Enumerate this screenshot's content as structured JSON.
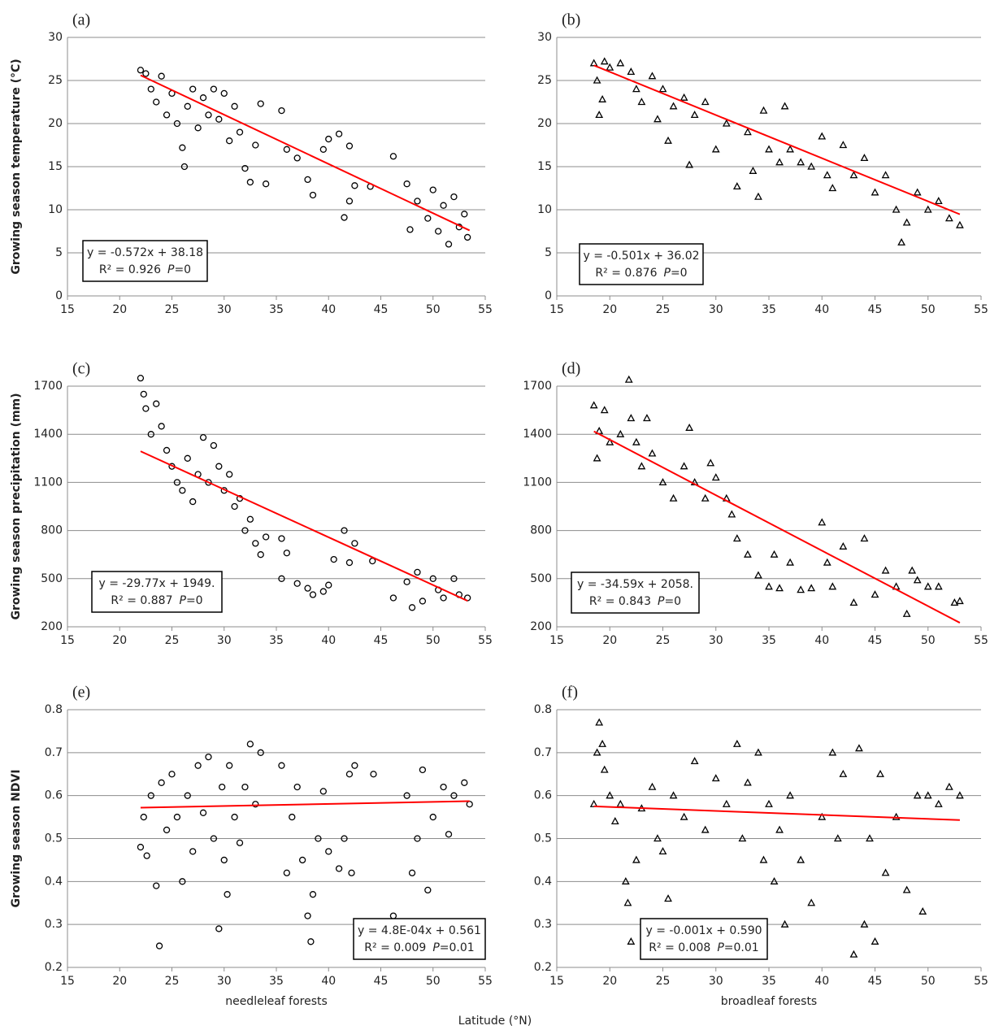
{
  "x_axis_title": "Latitude (°N)",
  "chart_data": [
    {
      "type": "scatter",
      "panel_label": "(a)",
      "y_label": "Growing season temperature (°C)",
      "marker": "circle",
      "xlim": [
        15,
        55
      ],
      "xticks": [
        15,
        20,
        25,
        30,
        35,
        40,
        45,
        50,
        55
      ],
      "ylim": [
        0,
        30
      ],
      "yticks": [
        0,
        5,
        10,
        15,
        20,
        25,
        30
      ],
      "grid": true,
      "series": [
        {
          "color": "#000000",
          "x": [
            22,
            22.5,
            23,
            23.5,
            24,
            24.5,
            25,
            25.5,
            26,
            26.2,
            26.5,
            27,
            27.5,
            28,
            28.5,
            29,
            29.5,
            30,
            30.5,
            31,
            31.5,
            32,
            32.5,
            33,
            33.5,
            34,
            35.5,
            36,
            37,
            38,
            38.5,
            39.5,
            40,
            41,
            41.5,
            42,
            42,
            42.5,
            44,
            46.2,
            47.5,
            47.8,
            48.5,
            49.5,
            50,
            50.5,
            51,
            51.5,
            52,
            52.5,
            53,
            53.3
          ],
          "values": [
            26.2,
            25.8,
            24,
            22.5,
            25.5,
            21,
            23.5,
            20,
            17.2,
            15,
            22,
            24,
            19.5,
            23,
            21,
            24,
            20.5,
            23.5,
            18,
            22,
            19,
            14.8,
            13.2,
            17.5,
            22.3,
            13,
            21.5,
            17,
            16,
            13.5,
            11.7,
            17,
            18.2,
            18.8,
            9.1,
            17.4,
            11,
            12.8,
            12.7,
            16.2,
            13,
            7.7,
            11,
            9,
            12.3,
            7.5,
            10.5,
            6,
            11.5,
            8,
            9.5,
            6.8
          ]
        }
      ],
      "trend": {
        "color": "#ff0000",
        "x": [
          22,
          53.5
        ],
        "values": [
          25.6,
          7.6
        ]
      },
      "annotation": {
        "equation": "y = -0.572x + 38.18",
        "r2": "R² = 0.926",
        "p_label": "P",
        "p_value": "=0"
      }
    },
    {
      "type": "scatter",
      "panel_label": "(b)",
      "marker": "triangle",
      "xlim": [
        15,
        55
      ],
      "xticks": [
        15,
        20,
        25,
        30,
        35,
        40,
        45,
        50,
        55
      ],
      "ylim": [
        0,
        30
      ],
      "yticks": [
        0,
        5,
        10,
        15,
        20,
        25,
        30
      ],
      "grid": true,
      "series": [
        {
          "color": "#000000",
          "x": [
            18.5,
            18.8,
            19,
            19.3,
            19.5,
            20,
            21,
            22,
            22.5,
            23,
            24,
            24.5,
            25,
            25.5,
            26,
            27,
            27.5,
            28,
            29,
            30,
            31,
            32,
            33,
            33.5,
            34,
            34.5,
            35,
            36,
            36.5,
            37,
            38,
            39,
            40,
            40.5,
            41,
            42,
            43,
            44,
            45,
            46,
            47,
            47.5,
            48,
            49,
            50,
            51,
            52,
            53
          ],
          "values": [
            27,
            25,
            21,
            22.8,
            27.2,
            26.5,
            27,
            26,
            24,
            22.5,
            25.5,
            20.5,
            24,
            18,
            22,
            23,
            15.2,
            21,
            22.5,
            17,
            20,
            12.7,
            19,
            14.5,
            11.5,
            21.5,
            17,
            15.5,
            22,
            17,
            15.5,
            15,
            18.5,
            14,
            12.5,
            17.5,
            14,
            16,
            12,
            14,
            10,
            6.2,
            8.5,
            12,
            10,
            11,
            9,
            8.2
          ]
        }
      ],
      "trend": {
        "color": "#ff0000",
        "x": [
          18.5,
          53
        ],
        "values": [
          26.75,
          9.47
        ]
      },
      "annotation": {
        "equation": "y = -0.501x + 36.02",
        "r2": "R² = 0.876",
        "p_label": "P",
        "p_value": "=0"
      }
    },
    {
      "type": "scatter",
      "panel_label": "(c)",
      "y_label": "Growing season precipitation (mm)",
      "marker": "circle",
      "xlim": [
        15,
        55
      ],
      "xticks": [
        15,
        20,
        25,
        30,
        35,
        40,
        45,
        50,
        55
      ],
      "ylim": [
        200,
        1700
      ],
      "yticks": [
        200,
        500,
        800,
        1100,
        1400,
        1700
      ],
      "grid": true,
      "series": [
        {
          "color": "#000000",
          "x": [
            22,
            22.3,
            22.5,
            23,
            23.5,
            24,
            24.5,
            25,
            25.5,
            26,
            26.5,
            27,
            27.5,
            28,
            28.5,
            29,
            29.5,
            30,
            30.5,
            31,
            31.5,
            32,
            32.5,
            33,
            33.5,
            34,
            35.5,
            35.5,
            36,
            37,
            38,
            38.5,
            39.5,
            40,
            40.5,
            41.5,
            42,
            42.5,
            44.2,
            46.2,
            47.5,
            48,
            48.5,
            49,
            50,
            50.5,
            51,
            52,
            52.5,
            53.3
          ],
          "values": [
            1750,
            1650,
            1560,
            1400,
            1590,
            1450,
            1300,
            1200,
            1100,
            1050,
            1250,
            980,
            1150,
            1380,
            1100,
            1330,
            1200,
            1050,
            1150,
            950,
            1000,
            800,
            870,
            720,
            650,
            760,
            750,
            500,
            660,
            470,
            440,
            400,
            420,
            460,
            620,
            800,
            600,
            720,
            610,
            380,
            480,
            320,
            540,
            360,
            500,
            430,
            380,
            500,
            400,
            380
          ]
        }
      ],
      "trend": {
        "color": "#ff0000",
        "x": [
          22,
          53.3
        ],
        "values": [
          1294,
          362
        ]
      },
      "annotation": {
        "equation": "y = -29.77x + 1949.",
        "r2": "R² = 0.887",
        "p_label": "P",
        "p_value": "=0"
      }
    },
    {
      "type": "scatter",
      "panel_label": "(d)",
      "marker": "triangle",
      "xlim": [
        15,
        55
      ],
      "xticks": [
        15,
        20,
        25,
        30,
        35,
        40,
        45,
        50,
        55
      ],
      "ylim": [
        200,
        1700
      ],
      "yticks": [
        200,
        500,
        800,
        1100,
        1400,
        1700
      ],
      "grid": true,
      "series": [
        {
          "color": "#000000",
          "x": [
            18.5,
            18.8,
            19,
            19.5,
            20,
            21,
            21.8,
            22,
            22.5,
            23,
            23.5,
            24,
            25,
            26,
            27,
            27.5,
            28,
            29,
            29.5,
            30,
            31,
            31.5,
            32,
            33,
            34,
            35,
            35.5,
            36,
            37,
            38,
            39,
            40,
            40.5,
            41,
            42,
            43,
            44,
            45,
            46,
            47,
            48,
            48.5,
            49,
            50,
            51,
            52.5,
            53
          ],
          "values": [
            1580,
            1250,
            1420,
            1550,
            1350,
            1400,
            1740,
            1500,
            1350,
            1200,
            1500,
            1280,
            1100,
            1000,
            1200,
            1440,
            1100,
            1000,
            1220,
            1130,
            1000,
            900,
            750,
            650,
            520,
            450,
            650,
            440,
            600,
            430,
            440,
            850,
            600,
            450,
            700,
            350,
            750,
            400,
            550,
            450,
            280,
            550,
            490,
            450,
            450,
            350,
            360
          ]
        }
      ],
      "trend": {
        "color": "#ff0000",
        "x": [
          18.5,
          53
        ],
        "values": [
          1418,
          225
        ]
      },
      "annotation": {
        "equation": "y = -34.59x + 2058.",
        "r2": "R² = 0.843",
        "p_label": "P",
        "p_value": "=0"
      }
    },
    {
      "type": "scatter",
      "panel_label": "(e)",
      "y_label": "Growing season NDVI",
      "x_label": "needleleaf forests",
      "marker": "circle",
      "xlim": [
        15,
        55
      ],
      "xticks": [
        15,
        20,
        25,
        30,
        35,
        40,
        45,
        50,
        55
      ],
      "ylim": [
        0.2,
        0.8
      ],
      "yticks": [
        0.2,
        0.3,
        0.4,
        0.5,
        0.6,
        0.7,
        0.8
      ],
      "grid": true,
      "series": [
        {
          "color": "#000000",
          "x": [
            22,
            22.3,
            22.6,
            23,
            23.5,
            23.8,
            24,
            24.5,
            25,
            25.5,
            26,
            26.5,
            27,
            27.5,
            28,
            28.5,
            29,
            29.5,
            29.8,
            30,
            30.3,
            30.5,
            31,
            31.5,
            32,
            32.5,
            33,
            33.5,
            35.5,
            36,
            36.5,
            37,
            37.5,
            38,
            38.3,
            38.5,
            39,
            39.5,
            40,
            41,
            41.5,
            42,
            42.2,
            42.5,
            44.3,
            46.2,
            47.5,
            48,
            48.5,
            49,
            49.5,
            50,
            51,
            51.5,
            52,
            53,
            53.5
          ],
          "values": [
            0.48,
            0.55,
            0.46,
            0.6,
            0.39,
            0.25,
            0.63,
            0.52,
            0.65,
            0.55,
            0.4,
            0.6,
            0.47,
            0.67,
            0.56,
            0.69,
            0.5,
            0.29,
            0.62,
            0.45,
            0.37,
            0.67,
            0.55,
            0.49,
            0.62,
            0.72,
            0.58,
            0.7,
            0.67,
            0.42,
            0.55,
            0.62,
            0.45,
            0.32,
            0.26,
            0.37,
            0.5,
            0.61,
            0.47,
            0.43,
            0.5,
            0.65,
            0.42,
            0.67,
            0.65,
            0.32,
            0.6,
            0.42,
            0.5,
            0.66,
            0.38,
            0.55,
            0.62,
            0.51,
            0.6,
            0.63,
            0.58
          ]
        }
      ],
      "trend": {
        "color": "#ff0000",
        "x": [
          22,
          53.5
        ],
        "values": [
          0.572,
          0.587
        ]
      },
      "annotation": {
        "equation": "y = 4.8E-04x + 0.561",
        "r2": "R² = 0.009",
        "p_label": "P",
        "p_value": "=0.01"
      }
    },
    {
      "type": "scatter",
      "panel_label": "(f)",
      "x_label": "broadleaf forests",
      "marker": "triangle",
      "xlim": [
        15,
        55
      ],
      "xticks": [
        15,
        20,
        25,
        30,
        35,
        40,
        45,
        50,
        55
      ],
      "ylim": [
        0.2,
        0.8
      ],
      "yticks": [
        0.2,
        0.3,
        0.4,
        0.5,
        0.6,
        0.7,
        0.8
      ],
      "grid": true,
      "series": [
        {
          "color": "#000000",
          "x": [
            18.5,
            18.8,
            19,
            19.3,
            19.5,
            20,
            20.5,
            21,
            21.5,
            21.7,
            22,
            22.5,
            23,
            24,
            24.5,
            25,
            25.5,
            26,
            27,
            28,
            29,
            30,
            31,
            32,
            32.5,
            33,
            34,
            34.5,
            35,
            35.5,
            36,
            36.5,
            37,
            38,
            39,
            40,
            41,
            41.5,
            42,
            43,
            43.5,
            44,
            44.5,
            45,
            45.5,
            46,
            47,
            48,
            49,
            49.5,
            50,
            51,
            52,
            53
          ],
          "values": [
            0.58,
            0.7,
            0.77,
            0.72,
            0.66,
            0.6,
            0.54,
            0.58,
            0.4,
            0.35,
            0.26,
            0.45,
            0.57,
            0.62,
            0.5,
            0.47,
            0.36,
            0.6,
            0.55,
            0.68,
            0.52,
            0.64,
            0.58,
            0.72,
            0.5,
            0.63,
            0.7,
            0.45,
            0.58,
            0.4,
            0.52,
            0.3,
            0.6,
            0.45,
            0.35,
            0.55,
            0.7,
            0.5,
            0.65,
            0.23,
            0.71,
            0.3,
            0.5,
            0.26,
            0.65,
            0.42,
            0.55,
            0.38,
            0.6,
            0.33,
            0.6,
            0.58,
            0.62,
            0.6
          ]
        }
      ],
      "trend": {
        "color": "#ff0000",
        "x": [
          18.5,
          53
        ],
        "values": [
          0.575,
          0.543
        ]
      },
      "annotation": {
        "equation": "y = -0.001x + 0.590",
        "r2": "R² = 0.008",
        "p_label": "P",
        "p_value": "=0.01"
      }
    }
  ]
}
